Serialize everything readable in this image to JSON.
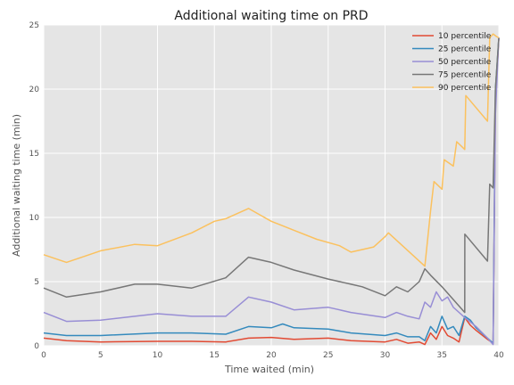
{
  "chart_data": {
    "type": "line",
    "title": "Additional waiting time on PRD",
    "xlabel": "Time waited (min)",
    "ylabel": "Additional waiting time (min)",
    "xlim": [
      0,
      40
    ],
    "ylim": [
      0,
      25
    ],
    "xticks": [
      "0",
      "5",
      "10",
      "15",
      "20",
      "25",
      "30",
      "35",
      "40"
    ],
    "yticks": [
      "0",
      "5",
      "10",
      "15",
      "20",
      "25"
    ],
    "grid": true,
    "legend_position": "top-right",
    "colors": {
      "background": "#e5e5e5",
      "grid": "#ffffff",
      "series": [
        "#e24a33",
        "#348abd",
        "#988ed5",
        "#777777",
        "#fbc15e"
      ]
    },
    "series": [
      {
        "name": "10 percentile",
        "points": [
          [
            0,
            0.6
          ],
          [
            2,
            0.4
          ],
          [
            5,
            0.3
          ],
          [
            10,
            0.35
          ],
          [
            13,
            0.35
          ],
          [
            16,
            0.3
          ],
          [
            18,
            0.6
          ],
          [
            20,
            0.65
          ],
          [
            22,
            0.5
          ],
          [
            25,
            0.6
          ],
          [
            27,
            0.4
          ],
          [
            30,
            0.3
          ],
          [
            31,
            0.5
          ],
          [
            32,
            0.2
          ],
          [
            33,
            0.3
          ],
          [
            33.5,
            0.1
          ],
          [
            34,
            1.0
          ],
          [
            34.5,
            0.5
          ],
          [
            35,
            1.5
          ],
          [
            35.5,
            0.8
          ],
          [
            36,
            0.6
          ],
          [
            36.5,
            0.3
          ],
          [
            37,
            2.2
          ],
          [
            37.5,
            1.6
          ],
          [
            38,
            1.2
          ],
          [
            39,
            0.5
          ],
          [
            39.5,
            0.2
          ],
          [
            39.7,
            19
          ],
          [
            40,
            24
          ]
        ]
      },
      {
        "name": "25 percentile",
        "points": [
          [
            0,
            1.0
          ],
          [
            2,
            0.8
          ],
          [
            5,
            0.8
          ],
          [
            10,
            1.0
          ],
          [
            13,
            1.0
          ],
          [
            16,
            0.9
          ],
          [
            18,
            1.5
          ],
          [
            20,
            1.4
          ],
          [
            21,
            1.7
          ],
          [
            22,
            1.4
          ],
          [
            25,
            1.3
          ],
          [
            27,
            1.0
          ],
          [
            30,
            0.8
          ],
          [
            31,
            1.0
          ],
          [
            32,
            0.7
          ],
          [
            33,
            0.7
          ],
          [
            33.5,
            0.4
          ],
          [
            34,
            1.5
          ],
          [
            34.5,
            1.0
          ],
          [
            35,
            2.3
          ],
          [
            35.5,
            1.3
          ],
          [
            36,
            1.5
          ],
          [
            36.5,
            0.8
          ],
          [
            37,
            2.3
          ],
          [
            37.5,
            2.0
          ],
          [
            38,
            1.4
          ],
          [
            39,
            0.6
          ],
          [
            39.5,
            0.2
          ],
          [
            39.7,
            20
          ],
          [
            40,
            24
          ]
        ]
      },
      {
        "name": "50 percentile",
        "points": [
          [
            0,
            2.6
          ],
          [
            2,
            1.9
          ],
          [
            5,
            2.0
          ],
          [
            8,
            2.3
          ],
          [
            10,
            2.5
          ],
          [
            13,
            2.3
          ],
          [
            16,
            2.3
          ],
          [
            18,
            3.8
          ],
          [
            20,
            3.4
          ],
          [
            22,
            2.8
          ],
          [
            25,
            3.0
          ],
          [
            27,
            2.6
          ],
          [
            30,
            2.2
          ],
          [
            31,
            2.6
          ],
          [
            32,
            2.3
          ],
          [
            33,
            2.1
          ],
          [
            33.5,
            3.4
          ],
          [
            34,
            3.0
          ],
          [
            34.5,
            4.2
          ],
          [
            35,
            3.5
          ],
          [
            35.5,
            3.8
          ],
          [
            36,
            3.0
          ],
          [
            37,
            2.2
          ],
          [
            38,
            1.5
          ],
          [
            39,
            0.6
          ],
          [
            39.5,
            0.1
          ],
          [
            39.7,
            18
          ],
          [
            40,
            24
          ]
        ]
      },
      {
        "name": "75 percentile",
        "points": [
          [
            0,
            4.5
          ],
          [
            2,
            3.8
          ],
          [
            5,
            4.2
          ],
          [
            8,
            4.8
          ],
          [
            10,
            4.8
          ],
          [
            13,
            4.5
          ],
          [
            16,
            5.3
          ],
          [
            18,
            6.9
          ],
          [
            20,
            6.5
          ],
          [
            22,
            5.9
          ],
          [
            25,
            5.2
          ],
          [
            27,
            4.8
          ],
          [
            28,
            4.6
          ],
          [
            30,
            3.9
          ],
          [
            31,
            4.6
          ],
          [
            32,
            4.2
          ],
          [
            33,
            5.0
          ],
          [
            33.5,
            6.0
          ],
          [
            34,
            5.5
          ],
          [
            35,
            4.6
          ],
          [
            37,
            2.6
          ],
          [
            37.01,
            8.7
          ],
          [
            39,
            6.6
          ],
          [
            39.2,
            12.6
          ],
          [
            39.5,
            12.3
          ],
          [
            39.7,
            20
          ],
          [
            40,
            24
          ]
        ]
      },
      {
        "name": "90 percentile",
        "points": [
          [
            0,
            7.1
          ],
          [
            2,
            6.5
          ],
          [
            5,
            7.4
          ],
          [
            8,
            7.9
          ],
          [
            10,
            7.8
          ],
          [
            13,
            8.8
          ],
          [
            15,
            9.7
          ],
          [
            16,
            9.9
          ],
          [
            18,
            10.7
          ],
          [
            19,
            10.2
          ],
          [
            20,
            9.7
          ],
          [
            22,
            9.0
          ],
          [
            24,
            8.3
          ],
          [
            26,
            7.8
          ],
          [
            27,
            7.3
          ],
          [
            29,
            7.7
          ],
          [
            30,
            8.5
          ],
          [
            30.3,
            8.8
          ],
          [
            33.5,
            6.2
          ],
          [
            34,
            10.5
          ],
          [
            34.3,
            12.8
          ],
          [
            35,
            12.2
          ],
          [
            35.2,
            14.5
          ],
          [
            36,
            14.0
          ],
          [
            36.3,
            15.9
          ],
          [
            37,
            15.3
          ],
          [
            37.1,
            19.5
          ],
          [
            39,
            17.5
          ],
          [
            39.2,
            24
          ],
          [
            39.5,
            24.3
          ],
          [
            39.8,
            24.1
          ],
          [
            40,
            24
          ]
        ]
      }
    ]
  }
}
